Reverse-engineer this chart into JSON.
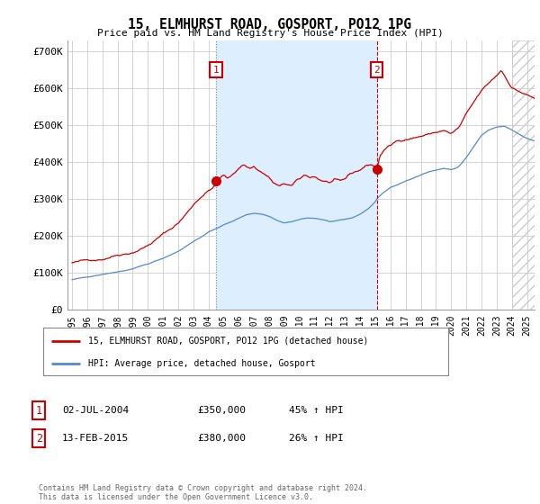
{
  "title": "15, ELMHURST ROAD, GOSPORT, PO12 1PG",
  "subtitle": "Price paid vs. HM Land Registry's House Price Index (HPI)",
  "ylabel_ticks": [
    "£0",
    "£100K",
    "£200K",
    "£300K",
    "£400K",
    "£500K",
    "£600K",
    "£700K"
  ],
  "ytick_values": [
    0,
    100000,
    200000,
    300000,
    400000,
    500000,
    600000,
    700000
  ],
  "ylim": [
    0,
    730000
  ],
  "xlim_start": 1994.7,
  "xlim_end": 2025.5,
  "red_line_color": "#cc0000",
  "blue_line_color": "#5588cc",
  "background_color": "#ffffff",
  "plot_bg_color": "#ffffff",
  "shading_color": "#ddeeff",
  "grid_color": "#cccccc",
  "hatch_color": "#cccccc",
  "marker1_x": 2004.5,
  "marker1_y": 350000,
  "marker2_x": 2015.1,
  "marker2_y": 380000,
  "legend_label_red": "15, ELMHURST ROAD, GOSPORT, PO12 1PG (detached house)",
  "legend_label_blue": "HPI: Average price, detached house, Gosport",
  "table_row1": [
    "1",
    "02-JUL-2004",
    "£350,000",
    "45% ↑ HPI"
  ],
  "table_row2": [
    "2",
    "13-FEB-2015",
    "£380,000",
    "26% ↑ HPI"
  ],
  "footer": "Contains HM Land Registry data © Crown copyright and database right 2024.\nThis data is licensed under the Open Government Licence v3.0.",
  "xtick_years": [
    1995,
    1996,
    1997,
    1998,
    1999,
    2000,
    2001,
    2002,
    2003,
    2004,
    2005,
    2006,
    2007,
    2008,
    2009,
    2010,
    2011,
    2012,
    2013,
    2014,
    2015,
    2016,
    2017,
    2018,
    2019,
    2020,
    2021,
    2022,
    2023,
    2024,
    2025
  ],
  "hatch_start": 2024.0
}
